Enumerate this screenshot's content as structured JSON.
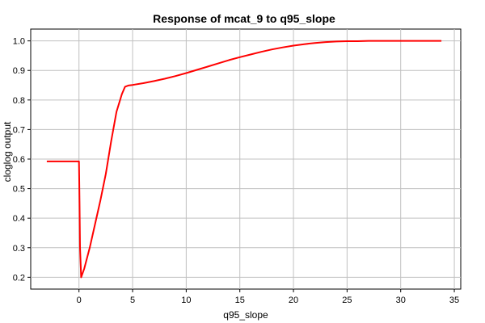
{
  "chart_data": {
    "type": "line",
    "title": "Response of mcat_9 to q95_slope",
    "xlabel": "q95_slope",
    "ylabel": "cloglog output",
    "xlim": [
      -4.5,
      35.6
    ],
    "ylim": [
      0.16,
      1.04
    ],
    "xticks": [
      0,
      5,
      10,
      15,
      20,
      25,
      30,
      35
    ],
    "yticks": [
      0.2,
      0.3,
      0.4,
      0.5,
      0.6,
      0.7,
      0.8,
      0.9,
      1.0
    ],
    "xtick_labels": [
      "0",
      "5",
      "10",
      "15",
      "20",
      "25",
      "30",
      "35"
    ],
    "ytick_labels": [
      "0.2",
      "0.3",
      "0.4",
      "0.5",
      "0.6",
      "0.7",
      "0.8",
      "0.9",
      "1.0"
    ],
    "grid": true,
    "series": [
      {
        "color": "#ff0000",
        "x": [
          -3.0,
          0.0,
          0.05,
          0.1,
          0.2,
          0.5,
          1.0,
          1.5,
          2.0,
          2.5,
          3.0,
          3.5,
          4.0,
          4.3,
          4.6,
          5.0,
          6.0,
          7.0,
          8.0,
          9.0,
          10.0,
          11.0,
          12.0,
          13.0,
          14.0,
          15.0,
          16.0,
          17.0,
          18.0,
          19.0,
          20.0,
          21.0,
          22.0,
          23.0,
          24.0,
          25.0,
          26.0,
          27.0,
          28.0,
          30.0,
          32.0,
          33.8
        ],
        "y": [
          0.592,
          0.592,
          0.45,
          0.3,
          0.2,
          0.23,
          0.3,
          0.38,
          0.46,
          0.55,
          0.66,
          0.76,
          0.82,
          0.845,
          0.849,
          0.851,
          0.857,
          0.864,
          0.872,
          0.881,
          0.891,
          0.902,
          0.913,
          0.924,
          0.935,
          0.945,
          0.954,
          0.963,
          0.971,
          0.978,
          0.984,
          0.989,
          0.993,
          0.996,
          0.998,
          0.999,
          0.999,
          1.0,
          1.0,
          1.0,
          1.0,
          1.0
        ]
      }
    ]
  }
}
